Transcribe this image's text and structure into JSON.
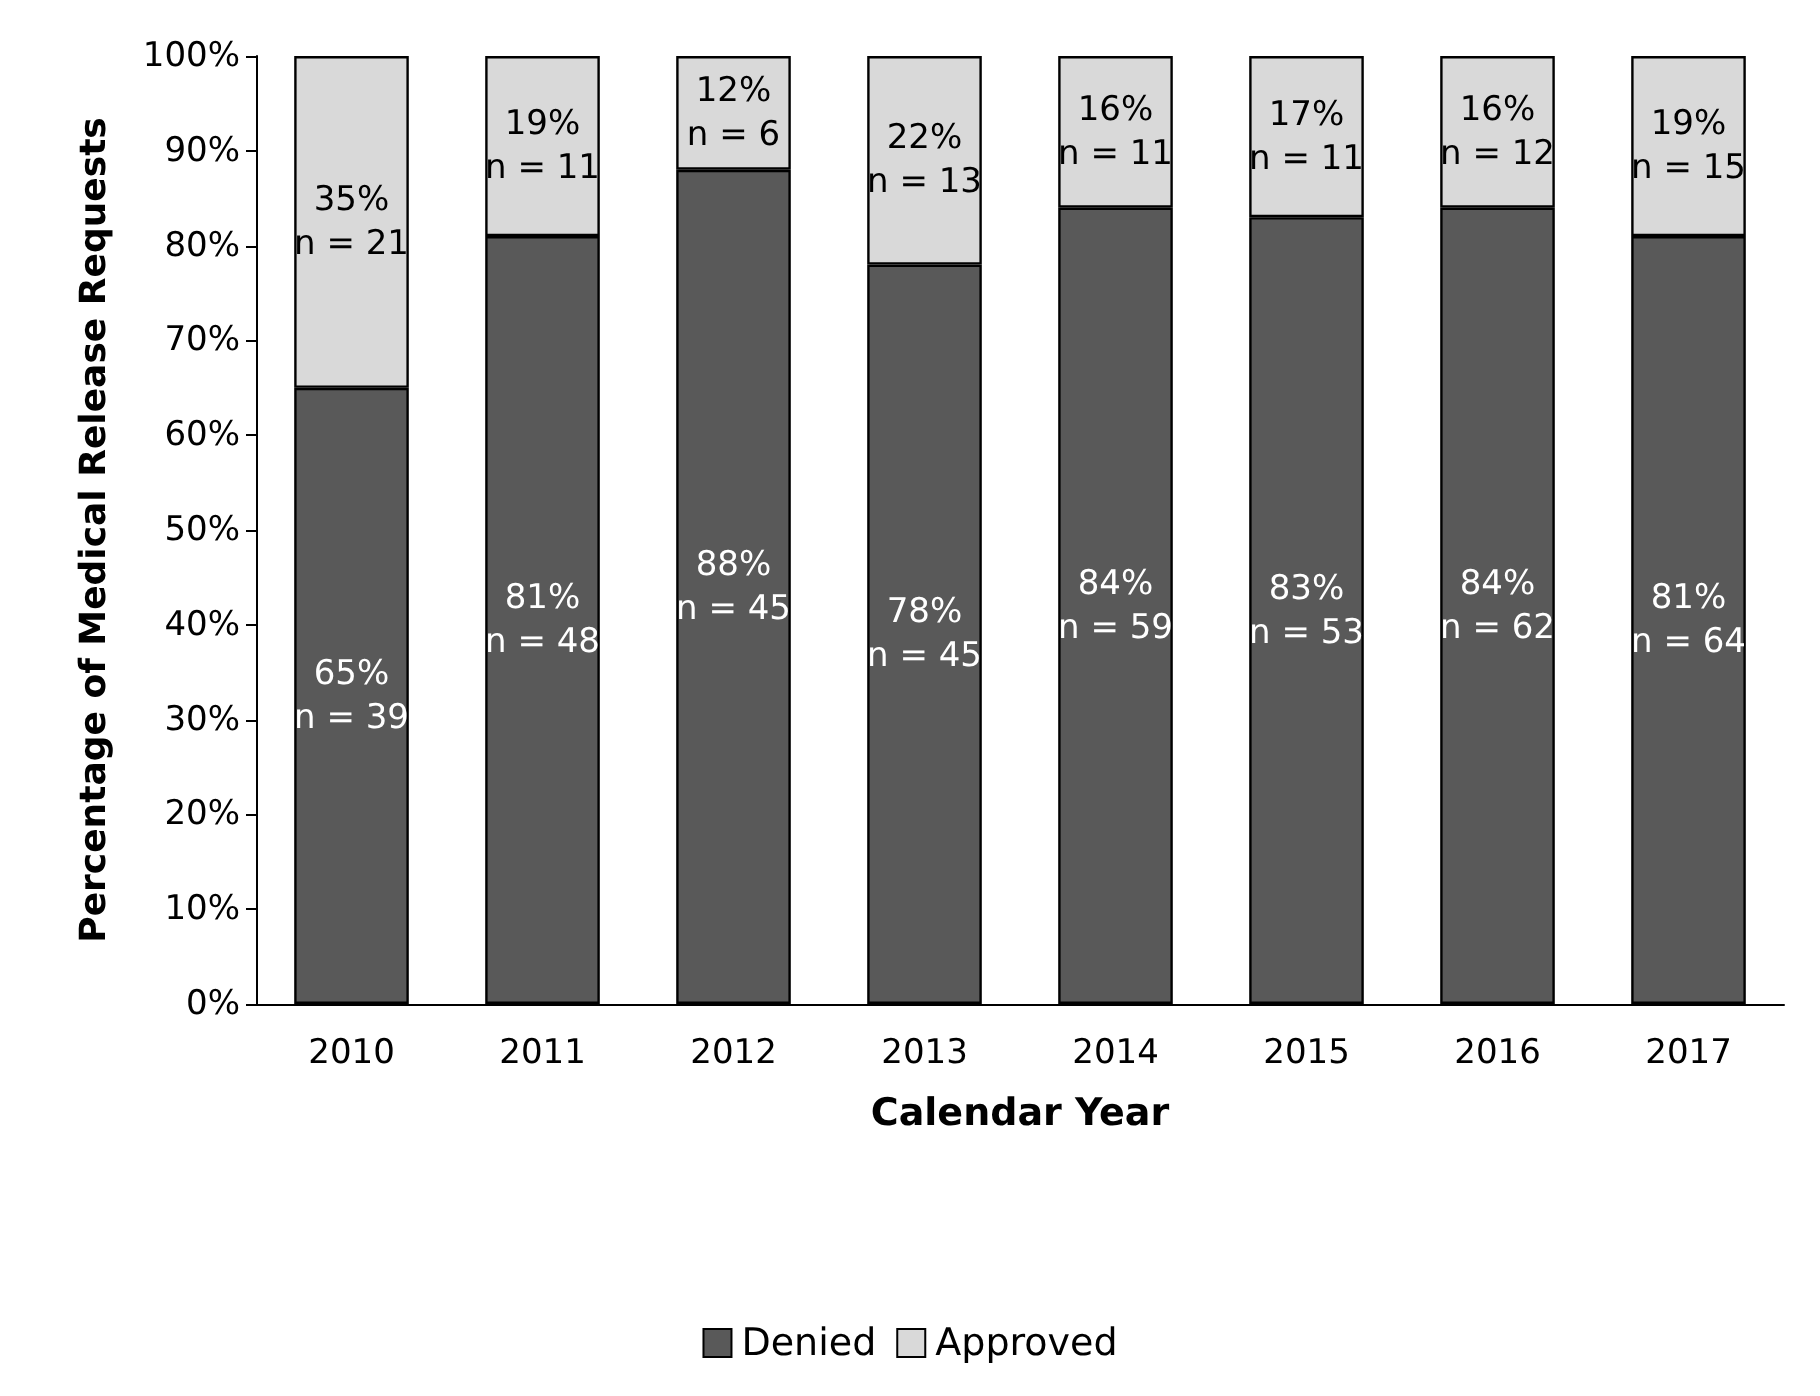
{
  "chart_data": {
    "type": "bar",
    "stacked": true,
    "xlabel": "Calendar Year",
    "ylabel": "Percentage of Medical Release Requests",
    "categories": [
      "2010",
      "2011",
      "2012",
      "2013",
      "2014",
      "2015",
      "2016",
      "2017"
    ],
    "series": [
      {
        "name": "Denied",
        "color": "#595959",
        "values": [
          65,
          81,
          88,
          78,
          84,
          83,
          84,
          81
        ],
        "value_labels": [
          "65%\nn = 39",
          "81%\nn = 48",
          "88%\nn = 45",
          "78%\nn = 45",
          "84%\nn = 59",
          "83%\nn = 53",
          "84%\nn = 62",
          "81%\nn = 64"
        ]
      },
      {
        "name": "Approved",
        "color": "#d9d9d9",
        "values": [
          35,
          19,
          12,
          22,
          16,
          17,
          16,
          19
        ],
        "value_labels": [
          "35%\nn = 21",
          "19%\nn = 11",
          "12%\nn = 6",
          "22%\nn = 13",
          "16%\nn = 11",
          "17%\nn = 11",
          "16%\nn = 12",
          "19%\nn = 15"
        ]
      }
    ],
    "ylim": [
      0,
      100
    ],
    "yticks": [
      {
        "value": 0,
        "label": "0%"
      },
      {
        "value": 10,
        "label": "10%"
      },
      {
        "value": 20,
        "label": "20%"
      },
      {
        "value": 30,
        "label": "30%"
      },
      {
        "value": 40,
        "label": "40%"
      },
      {
        "value": 50,
        "label": "50%"
      },
      {
        "value": 60,
        "label": "60%"
      },
      {
        "value": 70,
        "label": "70%"
      },
      {
        "value": 80,
        "label": "80%"
      },
      {
        "value": 90,
        "label": "90%"
      },
      {
        "value": 100,
        "label": "100%"
      }
    ],
    "grid": false,
    "legend": "bottom"
  }
}
